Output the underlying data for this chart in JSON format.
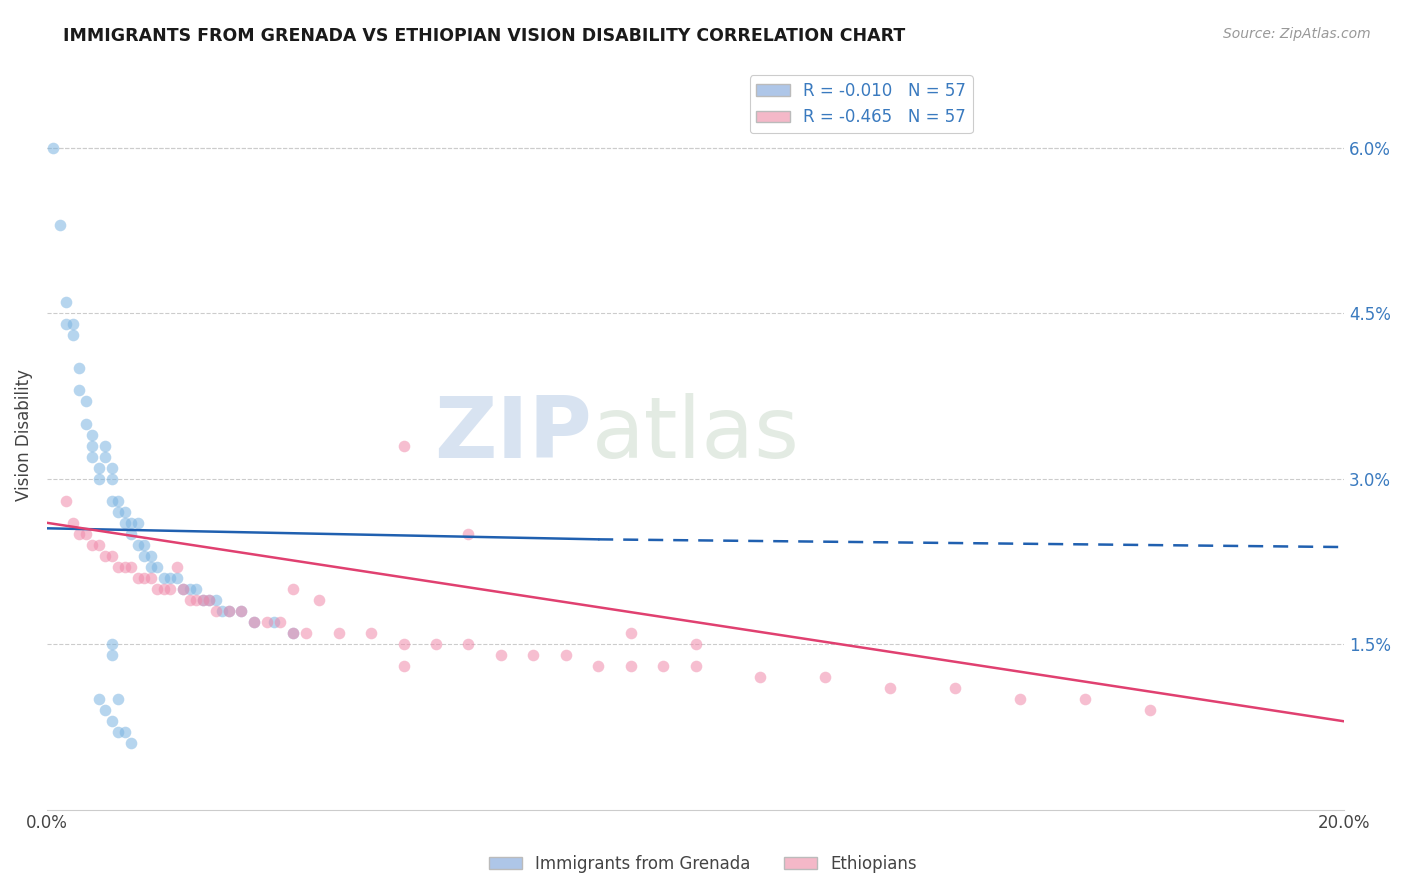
{
  "title": "IMMIGRANTS FROM GRENADA VS ETHIOPIAN VISION DISABILITY CORRELATION CHART",
  "source": "Source: ZipAtlas.com",
  "ylabel": "Vision Disability",
  "right_yticks": [
    "6.0%",
    "4.5%",
    "3.0%",
    "1.5%"
  ],
  "right_ytick_vals": [
    0.06,
    0.045,
    0.03,
    0.015
  ],
  "x_min": 0.0,
  "x_max": 0.2,
  "y_min": 0.0,
  "y_max": 0.068,
  "watermark_zip": "ZIP",
  "watermark_atlas": "atlas",
  "blue_scatter_x": [
    0.001,
    0.002,
    0.003,
    0.003,
    0.004,
    0.004,
    0.005,
    0.005,
    0.006,
    0.006,
    0.007,
    0.007,
    0.007,
    0.008,
    0.008,
    0.009,
    0.009,
    0.01,
    0.01,
    0.01,
    0.011,
    0.011,
    0.012,
    0.012,
    0.013,
    0.013,
    0.014,
    0.014,
    0.015,
    0.015,
    0.016,
    0.016,
    0.017,
    0.018,
    0.019,
    0.02,
    0.021,
    0.022,
    0.023,
    0.024,
    0.025,
    0.026,
    0.027,
    0.028,
    0.03,
    0.032,
    0.035,
    0.038,
    0.01,
    0.01,
    0.008,
    0.009,
    0.01,
    0.011,
    0.011,
    0.012,
    0.013
  ],
  "blue_scatter_y": [
    0.06,
    0.053,
    0.046,
    0.044,
    0.044,
    0.043,
    0.04,
    0.038,
    0.037,
    0.035,
    0.034,
    0.033,
    0.032,
    0.031,
    0.03,
    0.033,
    0.032,
    0.031,
    0.03,
    0.028,
    0.028,
    0.027,
    0.027,
    0.026,
    0.026,
    0.025,
    0.026,
    0.024,
    0.024,
    0.023,
    0.023,
    0.022,
    0.022,
    0.021,
    0.021,
    0.021,
    0.02,
    0.02,
    0.02,
    0.019,
    0.019,
    0.019,
    0.018,
    0.018,
    0.018,
    0.017,
    0.017,
    0.016,
    0.015,
    0.014,
    0.01,
    0.009,
    0.008,
    0.01,
    0.007,
    0.007,
    0.006
  ],
  "pink_scatter_x": [
    0.003,
    0.004,
    0.005,
    0.006,
    0.007,
    0.008,
    0.009,
    0.01,
    0.011,
    0.012,
    0.013,
    0.014,
    0.015,
    0.016,
    0.017,
    0.018,
    0.019,
    0.02,
    0.021,
    0.022,
    0.023,
    0.024,
    0.025,
    0.026,
    0.028,
    0.03,
    0.032,
    0.034,
    0.036,
    0.038,
    0.04,
    0.045,
    0.05,
    0.055,
    0.06,
    0.065,
    0.07,
    0.075,
    0.08,
    0.085,
    0.09,
    0.095,
    0.1,
    0.11,
    0.12,
    0.13,
    0.14,
    0.15,
    0.16,
    0.17,
    0.038,
    0.042,
    0.055,
    0.065,
    0.055,
    0.09,
    0.1
  ],
  "pink_scatter_y": [
    0.028,
    0.026,
    0.025,
    0.025,
    0.024,
    0.024,
    0.023,
    0.023,
    0.022,
    0.022,
    0.022,
    0.021,
    0.021,
    0.021,
    0.02,
    0.02,
    0.02,
    0.022,
    0.02,
    0.019,
    0.019,
    0.019,
    0.019,
    0.018,
    0.018,
    0.018,
    0.017,
    0.017,
    0.017,
    0.016,
    0.016,
    0.016,
    0.016,
    0.015,
    0.015,
    0.015,
    0.014,
    0.014,
    0.014,
    0.013,
    0.013,
    0.013,
    0.013,
    0.012,
    0.012,
    0.011,
    0.011,
    0.01,
    0.01,
    0.009,
    0.02,
    0.019,
    0.033,
    0.025,
    0.013,
    0.016,
    0.015
  ],
  "blue_line_x": [
    0.0,
    0.085,
    0.2
  ],
  "blue_line_y": [
    0.0255,
    0.0245,
    0.0238
  ],
  "blue_line_solid_end": 0.085,
  "pink_line_x": [
    0.0,
    0.2
  ],
  "pink_line_y": [
    0.026,
    0.008
  ],
  "scatter_size": 70,
  "blue_color": "#7bb3e0",
  "pink_color": "#f08aaa",
  "blue_alpha": 0.55,
  "pink_alpha": 0.55,
  "grid_color": "#cccccc",
  "background_color": "#ffffff",
  "blue_line_color": "#2060b0",
  "pink_line_color": "#e04070"
}
